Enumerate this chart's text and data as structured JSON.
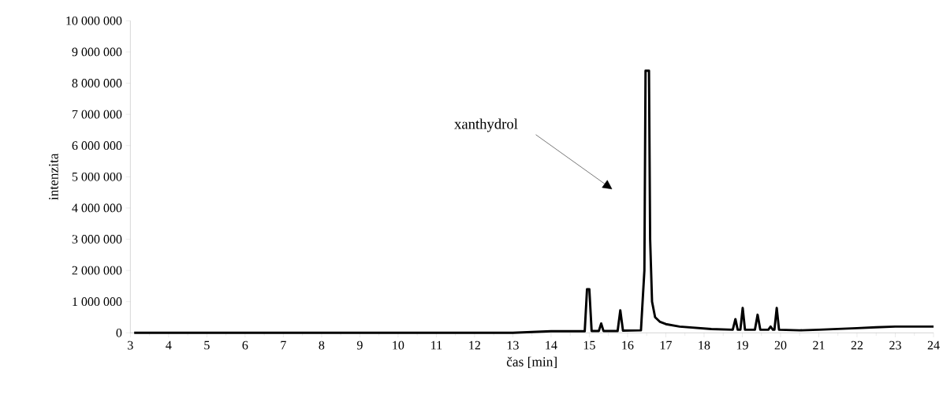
{
  "chart_data": {
    "type": "line",
    "xlabel": "čas [min]",
    "ylabel": "intenzita",
    "annotations": [
      "xanthydrol"
    ],
    "series": [
      {
        "color": "#000000",
        "x": [
          3.1,
          5,
          8,
          10,
          12,
          13,
          14,
          14.8,
          14.88,
          14.94,
          15.0,
          15.06,
          15.25,
          15.31,
          15.37,
          15.74,
          15.81,
          15.88,
          16.35,
          16.44,
          16.47,
          16.56,
          16.59,
          16.64,
          16.72,
          16.85,
          17.0,
          17.36,
          18.19,
          18.75,
          18.82,
          18.88,
          18.95,
          19.01,
          19.07,
          19.33,
          19.4,
          19.47,
          19.68,
          19.74,
          19.8,
          19.84,
          19.9,
          19.96,
          20.5,
          21,
          22,
          22.5,
          23,
          23.5,
          24
        ],
        "values": [
          0,
          0,
          0,
          0,
          0,
          0,
          50000,
          50000,
          50000,
          1400000,
          1400000,
          60000,
          60000,
          300000,
          60000,
          60000,
          720000,
          70000,
          80000,
          2000000,
          8400000,
          8400000,
          3000000,
          1000000,
          500000,
          350000,
          280000,
          200000,
          120000,
          100000,
          440000,
          100000,
          100000,
          800000,
          100000,
          100000,
          580000,
          100000,
          100000,
          200000,
          100000,
          100000,
          800000,
          100000,
          80000,
          100000,
          150000,
          180000,
          200000,
          200000,
          200000
        ]
      }
    ],
    "xlim": [
      3,
      24
    ],
    "xticks": [
      3,
      4,
      5,
      6,
      7,
      8,
      9,
      10,
      11,
      12,
      13,
      14,
      15,
      16,
      17,
      18,
      19,
      20,
      21,
      22,
      23,
      24
    ],
    "ylim": [
      0,
      10000000
    ],
    "yticks": [
      0,
      {
        "value": 1000000,
        "label": "1 000 000"
      },
      {
        "value": 2000000,
        "label": "2 000 000"
      },
      {
        "value": 3000000,
        "label": "3 000 000"
      },
      {
        "value": 4000000,
        "label": "4 000 000"
      },
      {
        "value": 5000000,
        "label": "5 000 000"
      },
      {
        "value": 6000000,
        "label": "6 000 000"
      },
      {
        "value": 7000000,
        "label": "7 000 000"
      },
      {
        "value": 8000000,
        "label": "8 000 000"
      },
      {
        "value": 9000000,
        "label": "9 000 000"
      },
      {
        "value": 10000000,
        "label": "10 000 000"
      }
    ],
    "grid": false,
    "marker": "none",
    "line_style": "solid"
  }
}
